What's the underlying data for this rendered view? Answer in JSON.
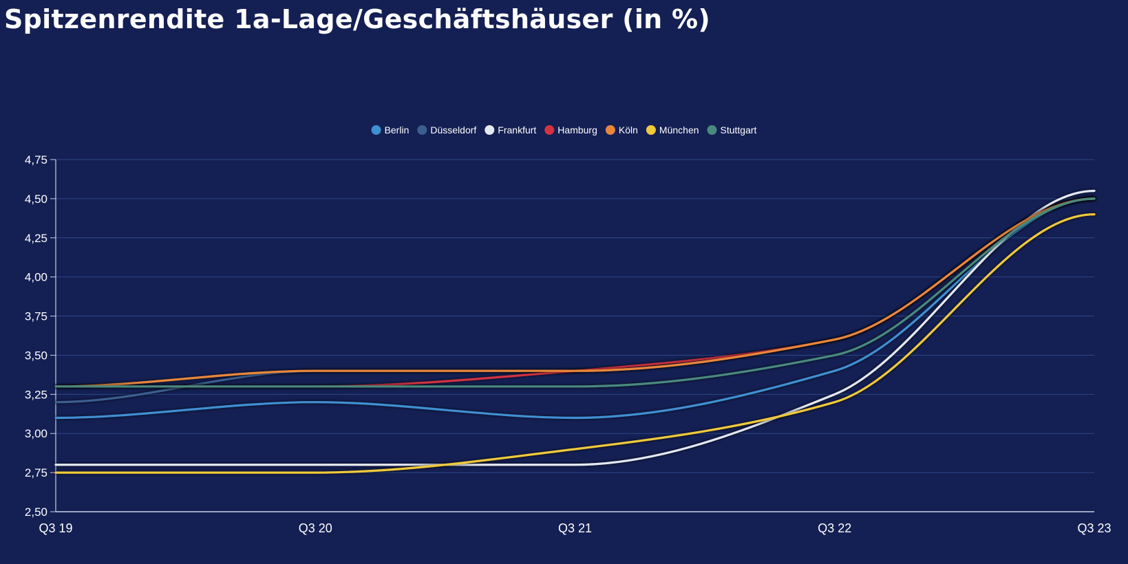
{
  "title": "Spitzenrendite 1a-Lage/Geschäftshäuser (in %)",
  "chart_data": {
    "type": "line",
    "smooth": true,
    "x": [
      "Q3 19",
      "Q3 20",
      "Q3 21",
      "Q3 22",
      "Q3 23"
    ],
    "y_ticks": [
      "2,50",
      "2,75",
      "3,00",
      "3,25",
      "3,50",
      "3,75",
      "4,00",
      "4,25",
      "4,50",
      "4,75"
    ],
    "ylim": [
      2.5,
      4.75
    ],
    "decimal_separator": ",",
    "grid": true,
    "legend_position": "top-center",
    "series": [
      {
        "name": "Berlin",
        "color": "#3f8fd2",
        "values": [
          3.1,
          3.2,
          3.1,
          3.4,
          4.5
        ]
      },
      {
        "name": "Düsseldorf",
        "color": "#3a5f8f",
        "values": [
          3.2,
          3.4,
          3.4,
          3.6,
          4.5
        ]
      },
      {
        "name": "Frankfurt",
        "color": "#e4e8f2",
        "values": [
          2.8,
          2.8,
          2.8,
          3.25,
          4.55
        ]
      },
      {
        "name": "Hamburg",
        "color": "#d2333f",
        "values": [
          3.3,
          3.3,
          3.4,
          3.6,
          4.5
        ]
      },
      {
        "name": "Köln",
        "color": "#e8873a",
        "values": [
          3.3,
          3.4,
          3.4,
          3.6,
          4.5
        ]
      },
      {
        "name": "München",
        "color": "#f0c93a",
        "values": [
          2.75,
          2.75,
          2.9,
          3.2,
          4.4
        ]
      },
      {
        "name": "Stuttgart",
        "color": "#4a8a7e",
        "values": [
          3.3,
          3.3,
          3.3,
          3.5,
          4.5
        ]
      }
    ]
  }
}
